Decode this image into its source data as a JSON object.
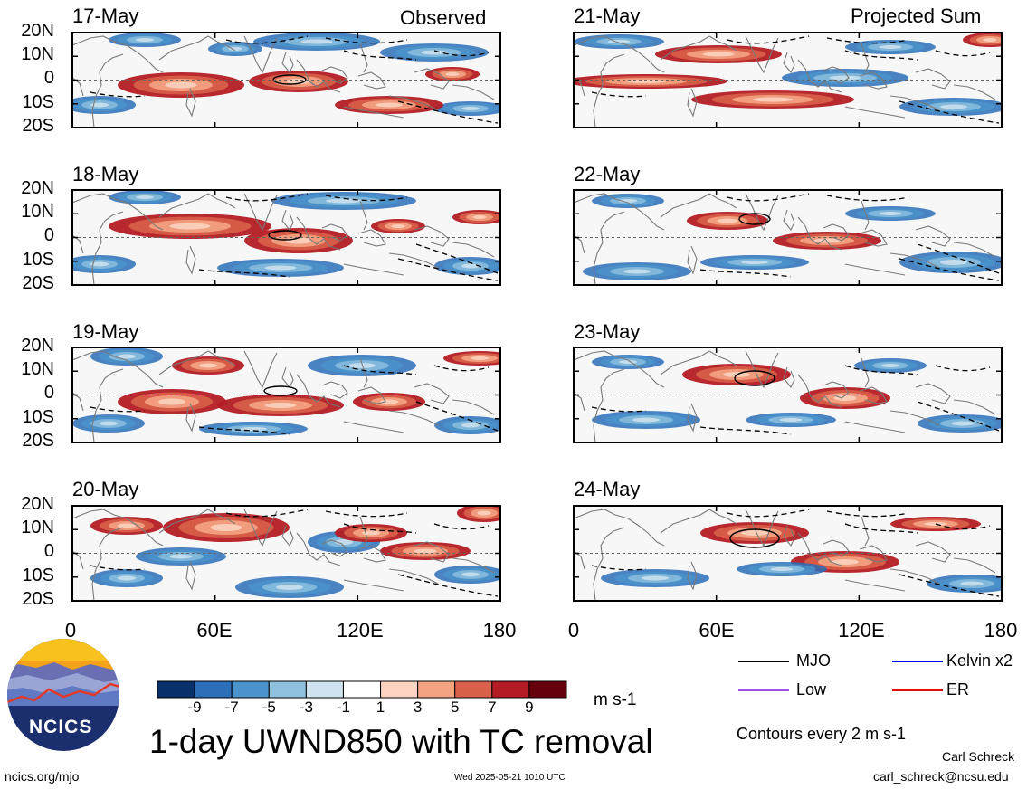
{
  "panels_left": {
    "header": "Observed",
    "dates": [
      "17-May",
      "18-May",
      "19-May",
      "20-May"
    ]
  },
  "panels_right": {
    "header": "Projected Sum",
    "dates": [
      "21-May",
      "22-May",
      "23-May",
      "24-May"
    ]
  },
  "lat_labels": [
    "20N",
    "10N",
    "0",
    "10S",
    "20S"
  ],
  "lon_labels": [
    "0",
    "60E",
    "120E",
    "180"
  ],
  "colorbar": {
    "ticks": [
      "-9",
      "-7",
      "-5",
      "-3",
      "-1",
      "1",
      "3",
      "5",
      "7",
      "9"
    ],
    "colors": [
      "#08306b",
      "#2c6fb8",
      "#4a93cb",
      "#8fc0de",
      "#cfe3ef",
      "#ffffff",
      "#fbd3c0",
      "#f4a382",
      "#d9604a",
      "#b31c24",
      "#67000d"
    ],
    "units": "m s-1"
  },
  "title": "1-day UWND850 with TC removal",
  "legend": {
    "items": [
      {
        "label": "MJO",
        "color": "#000000"
      },
      {
        "label": "Kelvin x2",
        "color": "#0000ff"
      },
      {
        "label": "Low",
        "color": "#a050e0"
      },
      {
        "label": "ER",
        "color": "#e01010"
      }
    ],
    "contour_note": "Contours every 2 m s-1"
  },
  "logo_text": "NCICS",
  "footer": {
    "url": "ncics.org/mjo",
    "timestamp": "Wed 2025-05-21 1010 UTC",
    "author": "Carl Schreck",
    "email": "carl_schreck@ncsu.edu"
  }
}
